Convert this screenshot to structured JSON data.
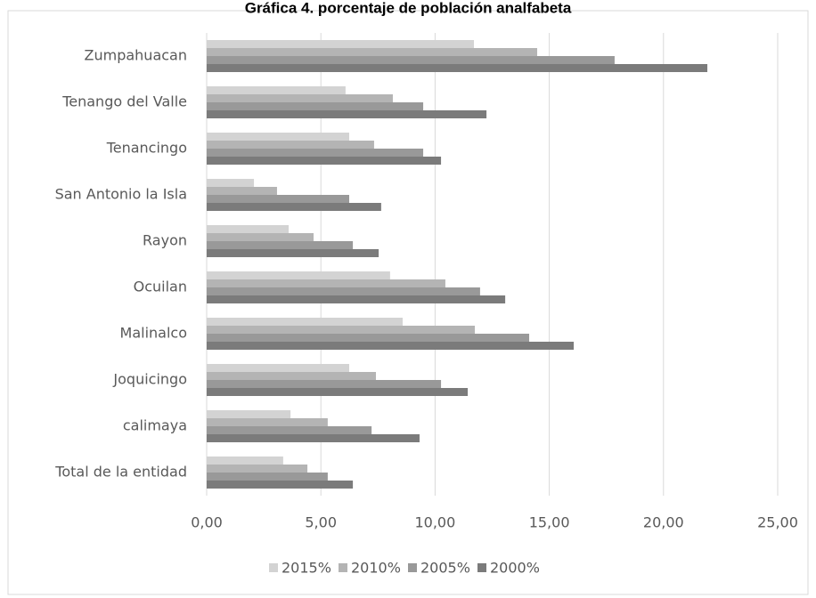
{
  "chart_data": {
    "type": "hbar",
    "title": "Gráfica 4. porcentaje de población analfabeta",
    "categories": [
      "Zumpahuacan",
      "Tenango del Valle",
      "Tenancingo",
      "San Antonio la Isla",
      "Rayon",
      "Ocuilan",
      "Malinalco",
      "Joquicingo",
      "calimaya",
      "Total de la entidad"
    ],
    "series": [
      {
        "name": "2015%",
        "color": "#d3d3d3",
        "values": [
          11.7,
          6.08,
          6.24,
          2.07,
          3.59,
          8.03,
          8.58,
          6.24,
          3.67,
          3.35
        ]
      },
      {
        "name": "2010%",
        "color": "#b4b4b4",
        "values": [
          14.47,
          8.15,
          7.33,
          3.08,
          4.68,
          10.45,
          11.74,
          7.41,
          5.3,
          4.41
        ]
      },
      {
        "name": "2005%",
        "color": "#999999",
        "values": [
          17.86,
          9.48,
          9.48,
          6.24,
          6.4,
          11.97,
          14.12,
          10.26,
          7.22,
          5.3
        ]
      },
      {
        "name": "2000%",
        "color": "#7b7b7b",
        "values": [
          21.92,
          12.25,
          10.26,
          7.64,
          7.53,
          13.07,
          16.07,
          11.43,
          9.32,
          6.4
        ]
      }
    ],
    "xlim": [
      0,
      25
    ],
    "xticks": [
      {
        "value": 0,
        "label": "0,00"
      },
      {
        "value": 5,
        "label": "5,00"
      },
      {
        "value": 10,
        "label": "10,00"
      },
      {
        "value": 15,
        "label": "15,00"
      },
      {
        "value": 20,
        "label": "20,00"
      },
      {
        "value": 25,
        "label": "25,00"
      }
    ],
    "grid": true,
    "legend": "bottom"
  }
}
